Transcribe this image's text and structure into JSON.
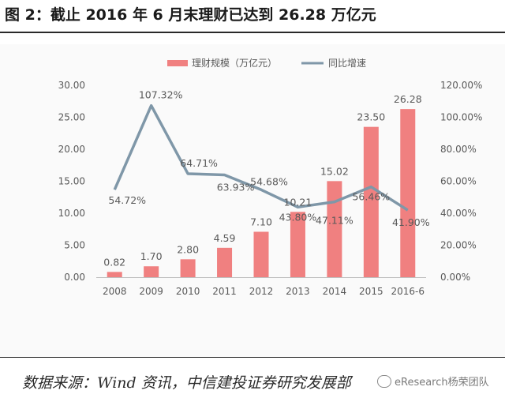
{
  "figure": {
    "title": "图 2：截止 2016 年 6 月末理财已达到 26.28 万亿元",
    "source": "数据来源：Wind 资讯，中信建投证券研究发展部",
    "watermark": "eResearch杨荣团队"
  },
  "colors": {
    "bar": "#f08080",
    "line": "#7f97a8",
    "axis_text": "#595959"
  },
  "chart_data": {
    "type": "bar",
    "categories": [
      "2008",
      "2009",
      "2010",
      "2011",
      "2012",
      "2013",
      "2014",
      "2015",
      "2016-6"
    ],
    "series": [
      {
        "name": "理财规模（万亿元）",
        "type": "bar",
        "axis": "left",
        "values": [
          0.82,
          1.7,
          2.8,
          4.59,
          7.1,
          10.21,
          15.02,
          23.5,
          26.28
        ],
        "labels": [
          "0.82",
          "1.70",
          "2.80",
          "4.59",
          "7.10",
          "10.21",
          "15.02",
          "23.50",
          "26.28"
        ]
      },
      {
        "name": "同比增速",
        "type": "line",
        "axis": "right",
        "values": [
          54.72,
          107.32,
          64.71,
          63.93,
          54.68,
          43.8,
          47.11,
          56.46,
          41.9
        ],
        "labels": [
          "54.72%",
          "107.32%",
          "64.71%",
          "63.93%",
          "54.68%",
          "43.80%",
          "47.11%",
          "56.46%",
          "41.90%"
        ]
      }
    ],
    "y_left": {
      "range": [
        0,
        30
      ],
      "ticks": [
        0,
        5,
        10,
        15,
        20,
        25,
        30
      ],
      "tick_labels": [
        "0.00",
        "5.00",
        "10.00",
        "15.00",
        "20.00",
        "25.00",
        "30.00"
      ]
    },
    "y_right": {
      "range": [
        0,
        120
      ],
      "ticks": [
        0,
        20,
        40,
        60,
        80,
        100,
        120
      ],
      "tick_labels": [
        "0.00%",
        "20.00%",
        "40.00%",
        "60.00%",
        "80.00%",
        "100.00%",
        "120.00%"
      ]
    },
    "grid": false,
    "legend_position": "top-center"
  }
}
